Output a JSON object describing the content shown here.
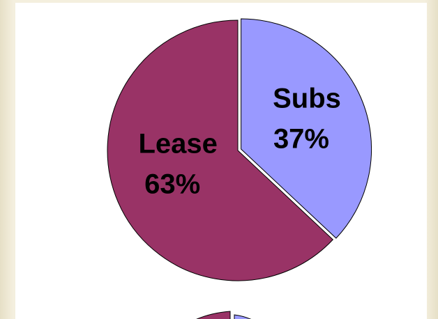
{
  "chart_data": {
    "type": "pie",
    "categories": [
      "Subs",
      "Lease"
    ],
    "values": [
      37,
      63
    ],
    "value_labels": [
      "37%",
      "63%"
    ],
    "colors": [
      "#9999ff",
      "#993366"
    ]
  }
}
